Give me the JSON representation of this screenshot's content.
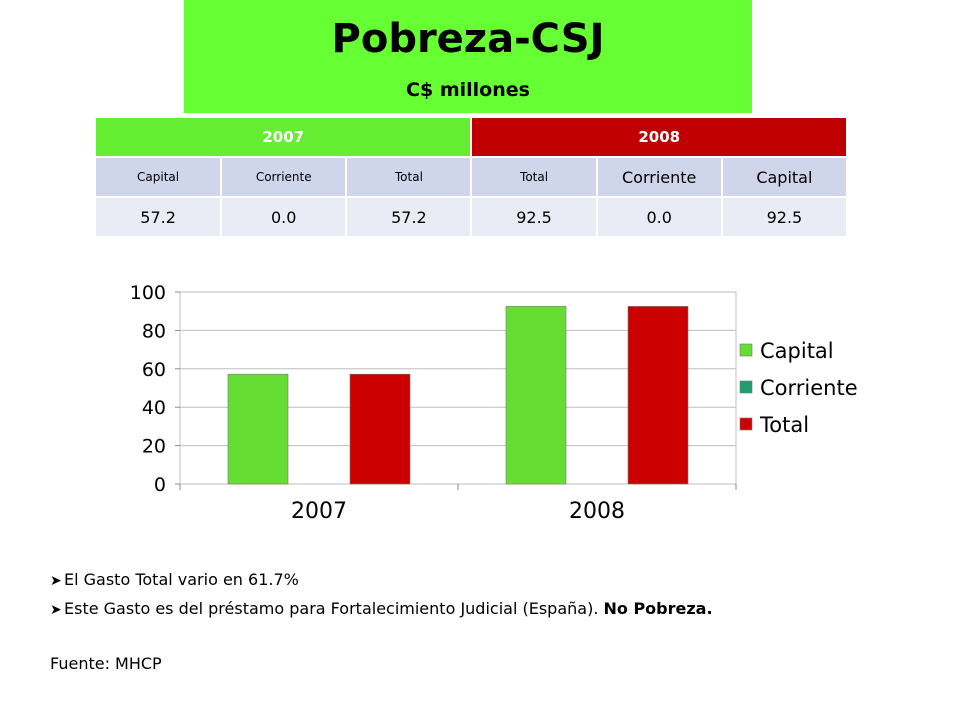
{
  "title": "Pobreza-CSJ",
  "subtitle": "C$ millones",
  "table": {
    "year_headers": [
      "2007",
      "2008"
    ],
    "column_headers": [
      "Capital",
      "Corriente",
      "Total",
      "Total",
      "Corriente",
      "Capital"
    ],
    "values": [
      "57.2",
      "0.0",
      "57.2",
      "92.5",
      "0.0",
      "92.5"
    ]
  },
  "chart_data": {
    "type": "bar",
    "categories": [
      "2007",
      "2008"
    ],
    "series": [
      {
        "name": "Capital",
        "values": [
          57.2,
          92.5
        ],
        "color": "#66dd33"
      },
      {
        "name": "Corriente",
        "values": [
          0,
          0
        ],
        "color": "#1f9e6e"
      },
      {
        "name": "Total",
        "values": [
          57.2,
          92.5
        ],
        "color": "#cc0000"
      }
    ],
    "yticks": [
      "0",
      "20",
      "40",
      "60",
      "80",
      "100"
    ],
    "ylim": [
      0,
      100
    ],
    "legend": "right"
  },
  "bullets": [
    {
      "text": "El Gasto Total vario en 61.7%",
      "bold": ""
    },
    {
      "text": "Este Gasto es del préstamo para Fortalecimiento Judicial (España). ",
      "bold": "No Pobreza."
    }
  ],
  "source": "Fuente: MHCP",
  "icons": {
    "bullet": "arrow-bullet-icon"
  }
}
